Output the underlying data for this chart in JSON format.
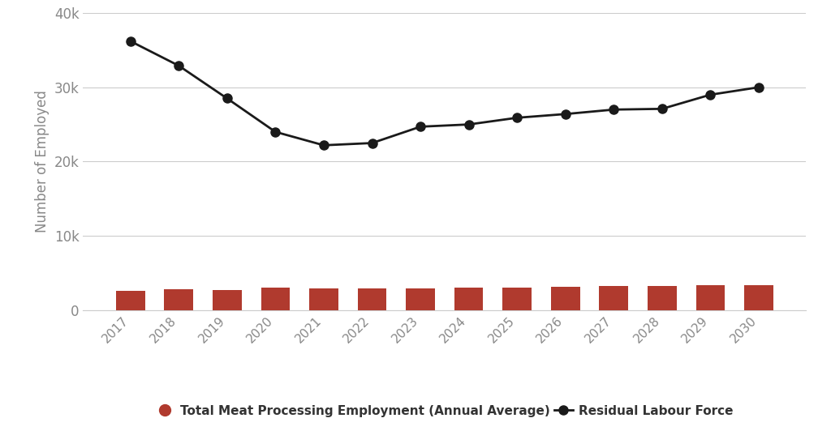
{
  "years": [
    2017,
    2018,
    2019,
    2020,
    2021,
    2022,
    2023,
    2024,
    2025,
    2026,
    2027,
    2028,
    2029,
    2030
  ],
  "bar_values": [
    2600,
    2800,
    2750,
    3050,
    2900,
    2950,
    2950,
    3100,
    3100,
    3150,
    3250,
    3250,
    3400,
    3400
  ],
  "line_values": [
    36200,
    32900,
    28500,
    24000,
    22200,
    22500,
    24700,
    25000,
    25900,
    26400,
    27000,
    27100,
    29000,
    30000
  ],
  "bar_color": "#b03a2e",
  "line_color": "#1a1a1a",
  "ylabel": "Number of Employed",
  "ylim": [
    0,
    40000
  ],
  "yticks": [
    0,
    10000,
    20000,
    30000,
    40000
  ],
  "ytick_labels": [
    "0",
    "10k",
    "20k",
    "30k",
    "40k"
  ],
  "background_color": "#ffffff",
  "legend_bar_label": "Total Meat Processing Employment (Annual Average)",
  "legend_line_label": "Residual Labour Force",
  "bar_width": 0.6,
  "grid_color": "#cccccc",
  "tick_color": "#888888",
  "spine_color": "#cccccc"
}
